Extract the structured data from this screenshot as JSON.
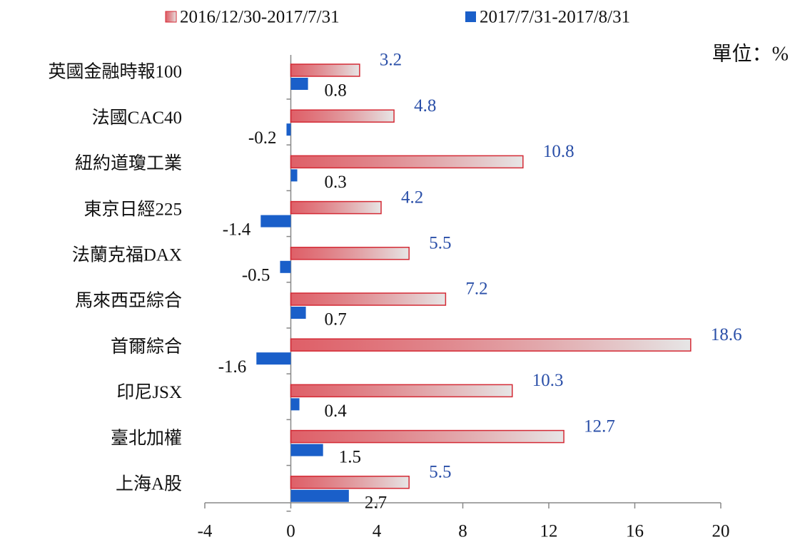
{
  "chart_data": {
    "type": "bar",
    "orientation": "horizontal",
    "unit_label": "單位：%",
    "categories": [
      "英國金融時報100",
      "法國CAC40",
      "紐約道瓊工業",
      "東京日經225",
      "法蘭克福DAX",
      "馬來西亞綜合",
      "首爾綜合",
      "印尼JSX",
      "臺北加權",
      "上海A股"
    ],
    "series": [
      {
        "name": "2016/12/30-2017/7/31",
        "color": "#d42a35",
        "values": [
          3.2,
          4.8,
          10.8,
          4.2,
          5.5,
          7.2,
          18.6,
          10.3,
          12.7,
          5.5
        ]
      },
      {
        "name": "2017/7/31-2017/8/31",
        "color": "#1a5fc9",
        "values": [
          0.8,
          -0.2,
          0.3,
          -1.4,
          -0.5,
          0.7,
          -1.6,
          0.4,
          1.5,
          2.7
        ]
      }
    ],
    "xlim": [
      -4,
      20
    ],
    "xticks": [
      -4,
      0,
      4,
      8,
      12,
      16,
      20
    ],
    "legend": "top"
  }
}
